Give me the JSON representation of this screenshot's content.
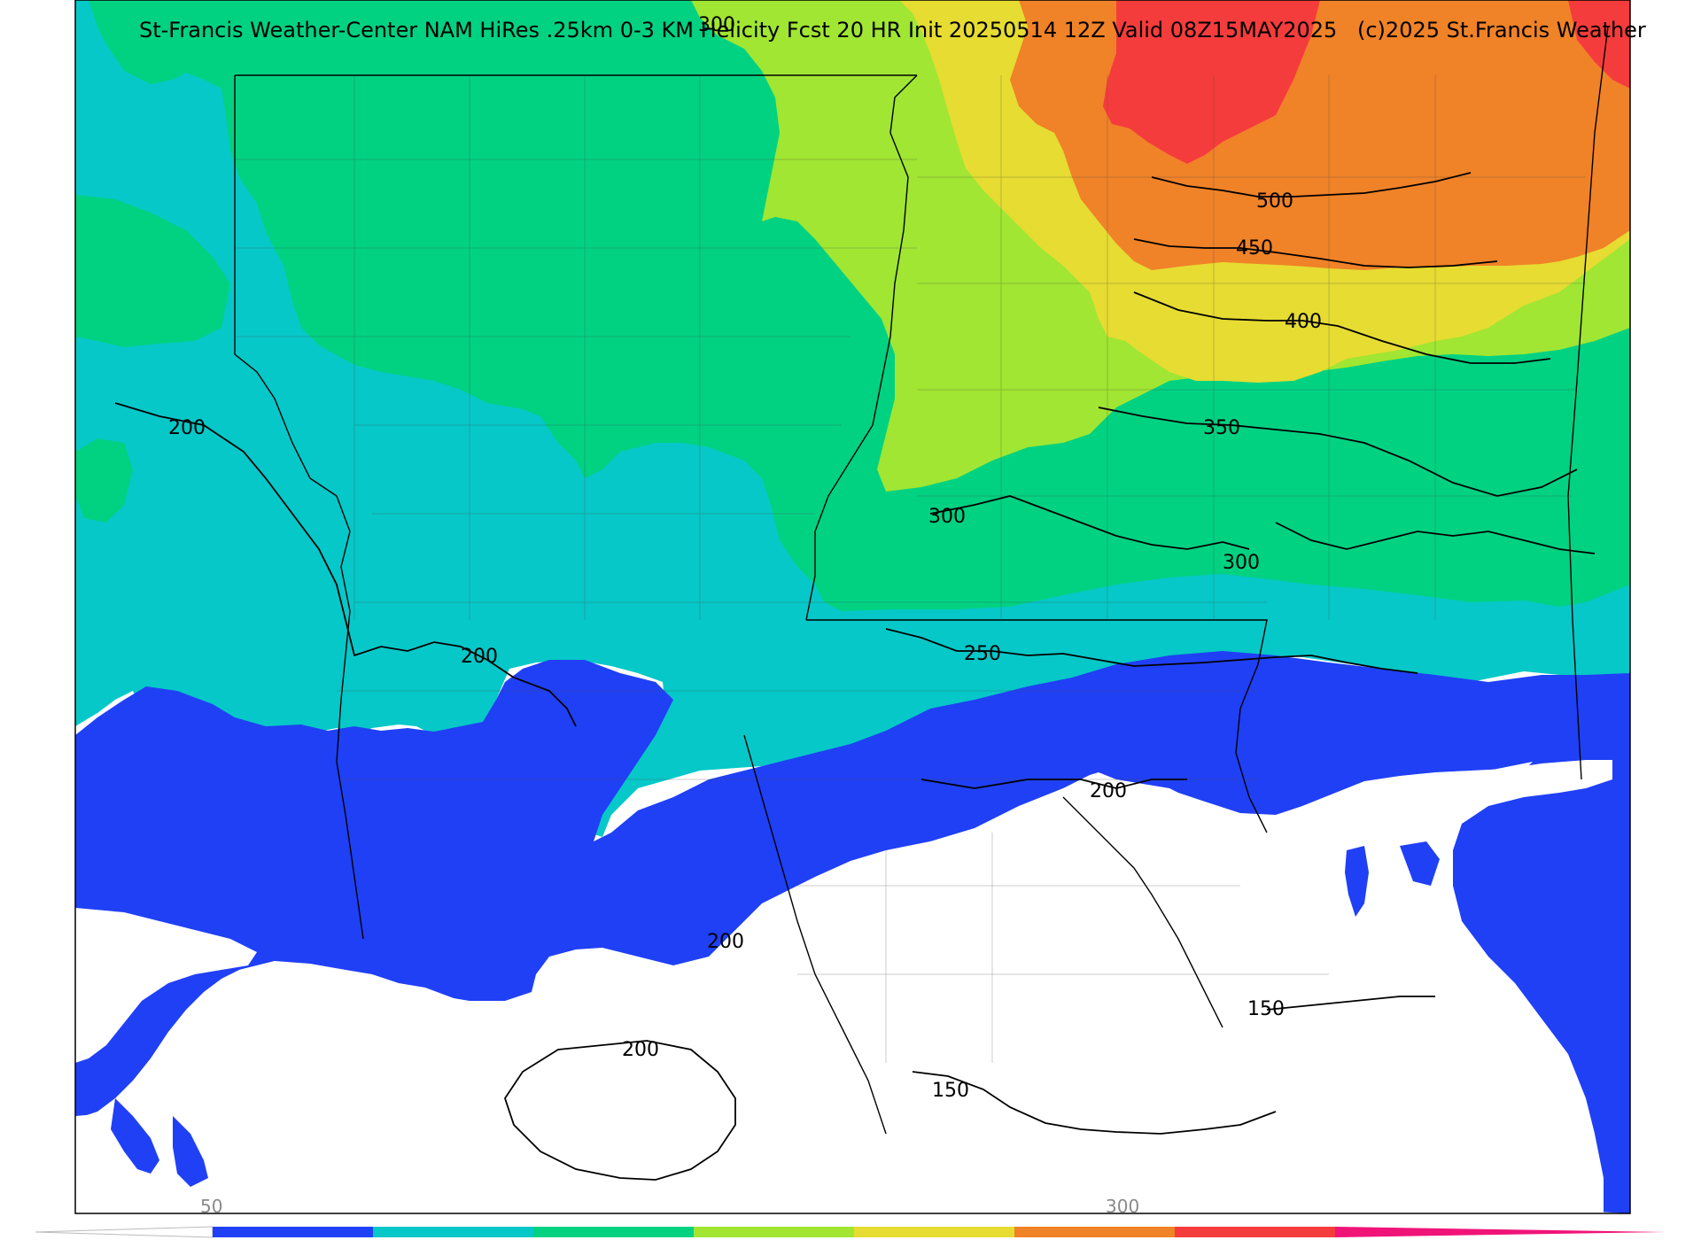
{
  "title": "St-Francis Weather-Center NAM HiRes .25km 0-3 KM Helicity Fcst 20 HR Init 20250514 12Z  Valid 08Z15MAY2025",
  "copyright": "(c)2025 St.Francis Weather",
  "colorbar": {
    "bins": [
      {
        "color": "#ffffff"
      },
      {
        "color": "#2040f5"
      },
      {
        "color": "#06c8c8"
      },
      {
        "color": "#00d282"
      },
      {
        "color": "#a0e632"
      },
      {
        "color": "#e6dc32"
      },
      {
        "color": "#f08228"
      },
      {
        "color": "#f53c3c"
      },
      {
        "color": "#f01478"
      }
    ],
    "tick_labels": [
      "50",
      "300"
    ]
  },
  "contour_labels": [
    {
      "id": "c200-a",
      "text": "200"
    },
    {
      "id": "c200-b",
      "text": "200"
    },
    {
      "id": "c200-c",
      "text": "200"
    },
    {
      "id": "c200-d",
      "text": "200"
    },
    {
      "id": "c200-e",
      "text": "200"
    },
    {
      "id": "c250",
      "text": "250"
    },
    {
      "id": "c300-a",
      "text": "300"
    },
    {
      "id": "c300-b",
      "text": "300"
    },
    {
      "id": "c300-top",
      "text": "300"
    },
    {
      "id": "c350",
      "text": "350"
    },
    {
      "id": "c400",
      "text": "400"
    },
    {
      "id": "c450",
      "text": "450"
    },
    {
      "id": "c500",
      "text": "500"
    },
    {
      "id": "c150-a",
      "text": "150"
    },
    {
      "id": "c150-b",
      "text": "150"
    }
  ],
  "fill_colors": {
    "white": "#ffffff",
    "blue": "#2040f5",
    "cyan": "#06c8c8",
    "green": "#00d282",
    "lime": "#a0e632",
    "yellow": "#e6dc32",
    "orange": "#f08228",
    "red": "#f53c3c"
  }
}
